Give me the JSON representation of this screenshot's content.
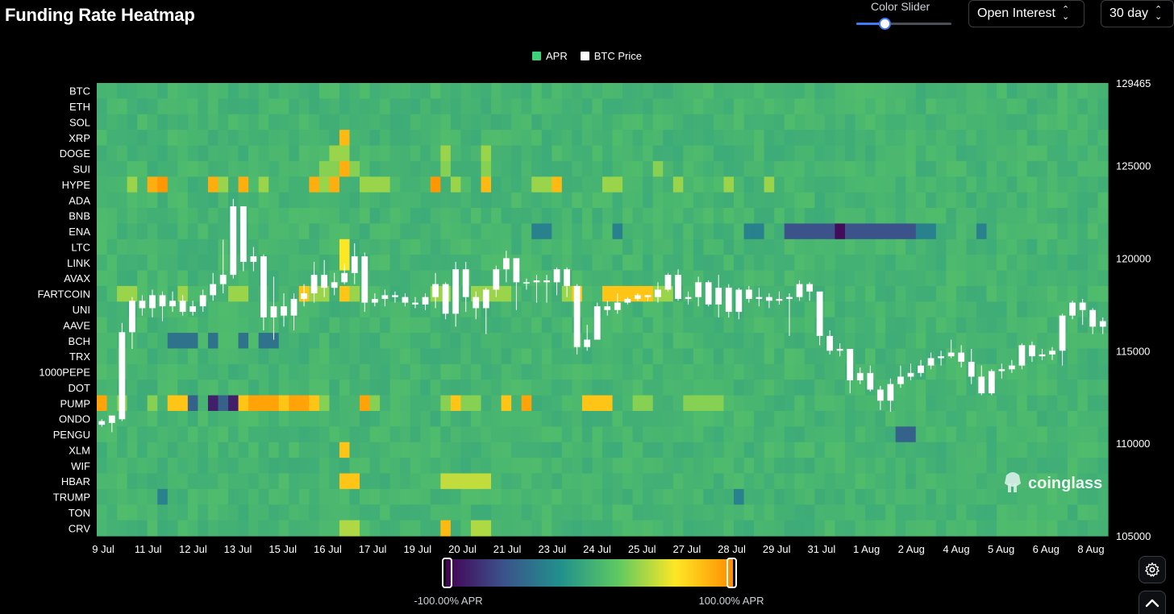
{
  "header": {
    "title": "Funding Rate Heatmap",
    "color_slider_label": "Color Slider",
    "color_slider_value": 0.3,
    "metric_select": "Open Interest",
    "range_select": "30 day"
  },
  "legend": [
    {
      "label": "APR",
      "color": "#3ecf7a"
    },
    {
      "label": "BTC Price",
      "color": "#ffffff"
    }
  ],
  "watermark": "coinglass",
  "colorbar": {
    "min_label": "-100.00% APR",
    "max_label": "100.00% APR",
    "colors": [
      "#440154",
      "#3b528b",
      "#21918c",
      "#5ec962",
      "#fde725",
      "#ff8c00"
    ]
  },
  "icons": {
    "settings": "gear-icon",
    "scroll_top": "chevron-up-icon"
  },
  "chart_data": [
    {
      "type": "heatmap",
      "title": "Funding Rate Heatmap",
      "symbols": [
        "BTC",
        "ETH",
        "SOL",
        "XRP",
        "DOGE",
        "SUI",
        "HYPE",
        "ADA",
        "BNB",
        "ENA",
        "LTC",
        "LINK",
        "AVAX",
        "FARTCOIN",
        "UNI",
        "AAVE",
        "BCH",
        "TRX",
        "1000PEPE",
        "DOT",
        "PUMP",
        "ONDO",
        "PENGU",
        "XLM",
        "WIF",
        "HBAR",
        "TRUMP",
        "TON",
        "CRV"
      ],
      "x_tick_labels": [
        "9 Jul",
        "11 Jul",
        "12 Jul",
        "13 Jul",
        "15 Jul",
        "16 Jul",
        "17 Jul",
        "19 Jul",
        "20 Jul",
        "21 Jul",
        "23 Jul",
        "24 Jul",
        "25 Jul",
        "27 Jul",
        "28 Jul",
        "29 Jul",
        "31 Jul",
        "1 Aug",
        "2 Aug",
        "4 Aug",
        "5 Aug",
        "6 Aug",
        "8 Aug"
      ],
      "value_range": [
        -1,
        1
      ],
      "value_unit": "APR",
      "baseline": 0.05,
      "highlights": [
        {
          "symbol": "XRP",
          "cols": [
            24
          ],
          "v": 0.8
        },
        {
          "symbol": "DOGE",
          "cols": [
            23,
            24,
            34,
            38
          ],
          "v": 0.35
        },
        {
          "symbol": "SUI",
          "cols": [
            24
          ],
          "v": 0.85
        },
        {
          "symbol": "SUI",
          "cols": [
            22,
            23,
            25,
            34,
            38,
            55
          ],
          "v": 0.3
        },
        {
          "symbol": "HYPE",
          "cols": [
            5,
            11,
            14,
            21,
            23
          ],
          "v": 0.85
        },
        {
          "symbol": "HYPE",
          "cols": [
            6,
            33
          ],
          "v": 0.95
        },
        {
          "symbol": "HYPE",
          "cols": [
            38,
            45
          ],
          "v": 0.8
        },
        {
          "symbol": "HYPE",
          "cols": [
            3,
            12,
            16,
            22,
            26,
            27,
            28,
            35,
            43,
            44,
            50,
            51,
            57,
            62,
            66
          ],
          "v": 0.35
        },
        {
          "symbol": "ENA",
          "cols": [
            68,
            69,
            70,
            71,
            72,
            74,
            75,
            76,
            77,
            78,
            79,
            80
          ],
          "v": -0.6
        },
        {
          "symbol": "ENA",
          "cols": [
            73
          ],
          "v": -0.95
        },
        {
          "symbol": "ENA",
          "cols": [
            43,
            44,
            51,
            64,
            65,
            81,
            82,
            87
          ],
          "v": -0.3
        },
        {
          "symbol": "LTC",
          "cols": [
            24
          ],
          "v": 0.6
        },
        {
          "symbol": "LINK",
          "cols": [
            24
          ],
          "v": 0.6
        },
        {
          "symbol": "FARTCOIN",
          "cols": [
            20,
            24,
            47,
            50,
            51,
            52,
            53,
            54
          ],
          "v": 0.75
        },
        {
          "symbol": "FARTCOIN",
          "cols": [
            2,
            3,
            8,
            13,
            14,
            21,
            22,
            25,
            33,
            34,
            37,
            38,
            39,
            40,
            46,
            55,
            56
          ],
          "v": 0.35
        },
        {
          "symbol": "BCH",
          "cols": [
            7,
            8,
            9,
            11,
            14,
            16,
            17
          ],
          "v": -0.4
        },
        {
          "symbol": "PUMP",
          "cols": [
            0,
            15,
            16,
            17,
            19,
            20,
            26,
            36,
            42
          ],
          "v": 0.9
        },
        {
          "symbol": "PUMP",
          "cols": [
            7,
            8,
            13,
            14,
            18,
            21,
            35,
            40,
            48,
            49,
            50
          ],
          "v": 0.75
        },
        {
          "symbol": "PUMP",
          "cols": [
            11,
            13
          ],
          "v": -0.85
        },
        {
          "symbol": "PUMP",
          "cols": [
            9,
            12
          ],
          "v": -0.5
        },
        {
          "symbol": "PUMP",
          "cols": [
            2,
            5,
            22,
            27,
            34,
            36,
            37,
            53,
            54,
            58,
            59,
            60,
            61
          ],
          "v": 0.3
        },
        {
          "symbol": "PENGU",
          "cols": [
            79,
            80
          ],
          "v": -0.5
        },
        {
          "symbol": "XLM",
          "cols": [
            24
          ],
          "v": 0.75
        },
        {
          "symbol": "HBAR",
          "cols": [
            24,
            25
          ],
          "v": 0.75
        },
        {
          "symbol": "HBAR",
          "cols": [
            34,
            35,
            36,
            37,
            38
          ],
          "v": 0.45
        },
        {
          "symbol": "CRV",
          "cols": [
            34
          ],
          "v": 0.8
        },
        {
          "symbol": "CRV",
          "cols": [
            24,
            25,
            37,
            38
          ],
          "v": 0.4
        },
        {
          "symbol": "TRUMP",
          "cols": [
            6,
            63
          ],
          "v": -0.3
        }
      ]
    },
    {
      "type": "line",
      "series_name": "BTC Price",
      "ylim": [
        105000,
        129465
      ],
      "y_ticks": [
        105000,
        110000,
        115000,
        120000,
        125000,
        129465
      ],
      "x_tick_labels": [
        "9 Jul",
        "11 Jul",
        "12 Jul",
        "13 Jul",
        "15 Jul",
        "16 Jul",
        "17 Jul",
        "19 Jul",
        "20 Jul",
        "21 Jul",
        "23 Jul",
        "24 Jul",
        "25 Jul",
        "27 Jul",
        "28 Jul",
        "29 Jul",
        "31 Jul",
        "1 Aug",
        "2 Aug",
        "4 Aug",
        "5 Aug",
        "6 Aug",
        "8 Aug"
      ],
      "candles": [
        [
          111000,
          111200,
          110900,
          111300
        ],
        [
          111100,
          111500,
          110600,
          111300
        ],
        [
          111300,
          116000,
          111200,
          116500
        ],
        [
          116000,
          117700,
          115100,
          117900
        ],
        [
          117700,
          117300,
          116900,
          118000
        ],
        [
          117300,
          118000,
          116800,
          118300
        ],
        [
          118000,
          117400,
          116600,
          118200
        ],
        [
          117400,
          117700,
          117100,
          118200
        ],
        [
          117700,
          117100,
          116900,
          118000
        ],
        [
          117100,
          117400,
          116900,
          117700
        ],
        [
          117400,
          118000,
          117100,
          118300
        ],
        [
          118000,
          118600,
          117700,
          119200
        ],
        [
          118600,
          119100,
          118100,
          121000
        ],
        [
          119100,
          122800,
          118900,
          123200
        ],
        [
          122800,
          119800,
          119300,
          122800
        ],
        [
          119800,
          120100,
          119300,
          120600
        ],
        [
          120100,
          116800,
          116100,
          120200
        ],
        [
          116800,
          117400,
          115600,
          119000
        ],
        [
          117400,
          116900,
          116300,
          118100
        ],
        [
          116900,
          117800,
          116100,
          118100
        ],
        [
          117800,
          118100,
          117400,
          118600
        ],
        [
          118100,
          119100,
          117600,
          119800
        ],
        [
          119100,
          118400,
          117900,
          119900
        ],
        [
          118400,
          118700,
          118000,
          119200
        ],
        [
          118700,
          119200,
          118600,
          119700
        ],
        [
          119200,
          120100,
          118600,
          120800
        ],
        [
          120100,
          117600,
          117100,
          120300
        ],
        [
          117600,
          117800,
          117400,
          118100
        ],
        [
          117800,
          118000,
          117400,
          118300
        ],
        [
          118000,
          117900,
          117600,
          118200
        ],
        [
          117900,
          117600,
          117400,
          118100
        ],
        [
          117600,
          117500,
          117300,
          117900
        ],
        [
          117500,
          117900,
          117200,
          118100
        ],
        [
          117900,
          118600,
          117300,
          119200
        ],
        [
          118600,
          117000,
          116700,
          118700
        ],
        [
          117000,
          119400,
          116300,
          119800
        ],
        [
          119400,
          117900,
          117100,
          119800
        ],
        [
          117900,
          117300,
          116700,
          118200
        ],
        [
          117300,
          118300,
          115900,
          118400
        ],
        [
          118300,
          119400,
          117900,
          119600
        ],
        [
          119400,
          120000,
          118700,
          120400
        ],
        [
          120000,
          118700,
          117200,
          120000
        ],
        [
          118700,
          118700,
          118300,
          118900
        ],
        [
          118700,
          118800,
          117600,
          119100
        ],
        [
          118800,
          118700,
          117600,
          119100
        ],
        [
          118700,
          119400,
          118000,
          119500
        ],
        [
          119400,
          118500,
          117900,
          119500
        ],
        [
          118500,
          115200,
          114800,
          118600
        ],
        [
          115200,
          115600,
          115000,
          116400
        ],
        [
          115600,
          117400,
          115600,
          117600
        ],
        [
          117400,
          117200,
          116900,
          117700
        ],
        [
          117200,
          117600,
          117000,
          118100
        ],
        [
          117600,
          117800,
          117500,
          117900
        ],
        [
          117800,
          118000,
          117700,
          118100
        ],
        [
          118000,
          117900,
          117700,
          118000
        ],
        [
          117900,
          118300,
          117600,
          118700
        ],
        [
          118300,
          119100,
          118200,
          119200
        ],
        [
          119100,
          117800,
          117700,
          119400
        ],
        [
          117800,
          117900,
          117500,
          118200
        ],
        [
          117900,
          118700,
          117400,
          119000
        ],
        [
          118700,
          117500,
          117400,
          118800
        ],
        [
          117500,
          118400,
          116800,
          119100
        ],
        [
          118400,
          117100,
          116800,
          118600
        ],
        [
          117100,
          118300,
          116700,
          118400
        ],
        [
          118300,
          117800,
          117600,
          118500
        ],
        [
          117800,
          117900,
          117400,
          118400
        ],
        [
          117900,
          117700,
          117300,
          118100
        ],
        [
          117700,
          117800,
          117500,
          118200
        ],
        [
          117800,
          117900,
          115800,
          118100
        ],
        [
          117900,
          118600,
          117700,
          118800
        ],
        [
          118600,
          118200,
          117700,
          118700
        ],
        [
          118200,
          115800,
          115300,
          118200
        ],
        [
          115800,
          115000,
          114800,
          116100
        ],
        [
          115000,
          115100,
          114700,
          115400
        ],
        [
          115100,
          113400,
          112700,
          115100
        ],
        [
          113400,
          113800,
          113200,
          114100
        ],
        [
          113800,
          112900,
          112800,
          114200
        ],
        [
          112900,
          112300,
          111800,
          113100
        ],
        [
          112300,
          113200,
          111700,
          113500
        ],
        [
          113200,
          113600,
          113000,
          114200
        ],
        [
          113600,
          113800,
          113400,
          114300
        ],
        [
          113800,
          114200,
          113600,
          114500
        ],
        [
          114200,
          114600,
          114000,
          114900
        ],
        [
          114600,
          114700,
          114200,
          115000
        ],
        [
          114700,
          114900,
          114600,
          115600
        ],
        [
          114900,
          114400,
          114100,
          115300
        ],
        [
          114400,
          113600,
          113200,
          115100
        ],
        [
          113600,
          112700,
          112600,
          114200
        ],
        [
          112700,
          113900,
          112600,
          114000
        ],
        [
          113900,
          114000,
          113500,
          114300
        ],
        [
          114000,
          114200,
          113800,
          114500
        ],
        [
          114200,
          115300,
          114000,
          115400
        ],
        [
          115300,
          114700,
          114400,
          115500
        ],
        [
          114700,
          114800,
          114500,
          115100
        ],
        [
          114800,
          115000,
          114500,
          115200
        ],
        [
          115000,
          116900,
          114200,
          117000
        ],
        [
          116900,
          117600,
          116700,
          117700
        ],
        [
          117600,
          117200,
          116400,
          117800
        ],
        [
          117200,
          116300,
          115900,
          117300
        ],
        [
          116300,
          116600,
          115900,
          116800
        ]
      ]
    }
  ]
}
